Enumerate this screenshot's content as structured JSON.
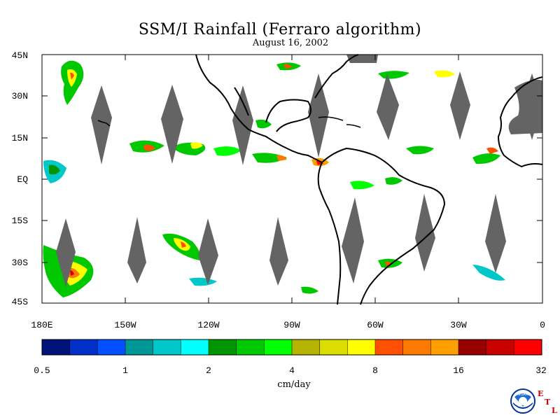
{
  "title": "SSM/I Rainfall (Ferraro algorithm)",
  "date": "August 16, 2002",
  "map": {
    "lon_range": [
      -180,
      0
    ],
    "lat_range": [
      -45,
      45
    ],
    "lat_labels": [
      "45N",
      "30N",
      "15N",
      "EQ",
      "15S",
      "30S",
      "45S"
    ],
    "lon_labels": [
      "180E",
      "150W",
      "120W",
      "90W",
      "60W",
      "30W",
      "0"
    ]
  },
  "colorbar": {
    "colors": [
      "#00137a",
      "#0030c8",
      "#0050ff",
      "#009696",
      "#00c8c8",
      "#00ffff",
      "#009600",
      "#00c800",
      "#00ff00",
      "#b4b400",
      "#dcdc00",
      "#ffff00",
      "#ff5000",
      "#ff7800",
      "#ffa000",
      "#960000",
      "#c80000",
      "#ff0000"
    ],
    "tick_labels": [
      "0.5",
      "1",
      "2",
      "4",
      "8",
      "16",
      "32"
    ],
    "unit": "cm/day"
  },
  "logo": {
    "badge": "NOAA",
    "letters": [
      "E",
      "T",
      "L"
    ]
  }
}
